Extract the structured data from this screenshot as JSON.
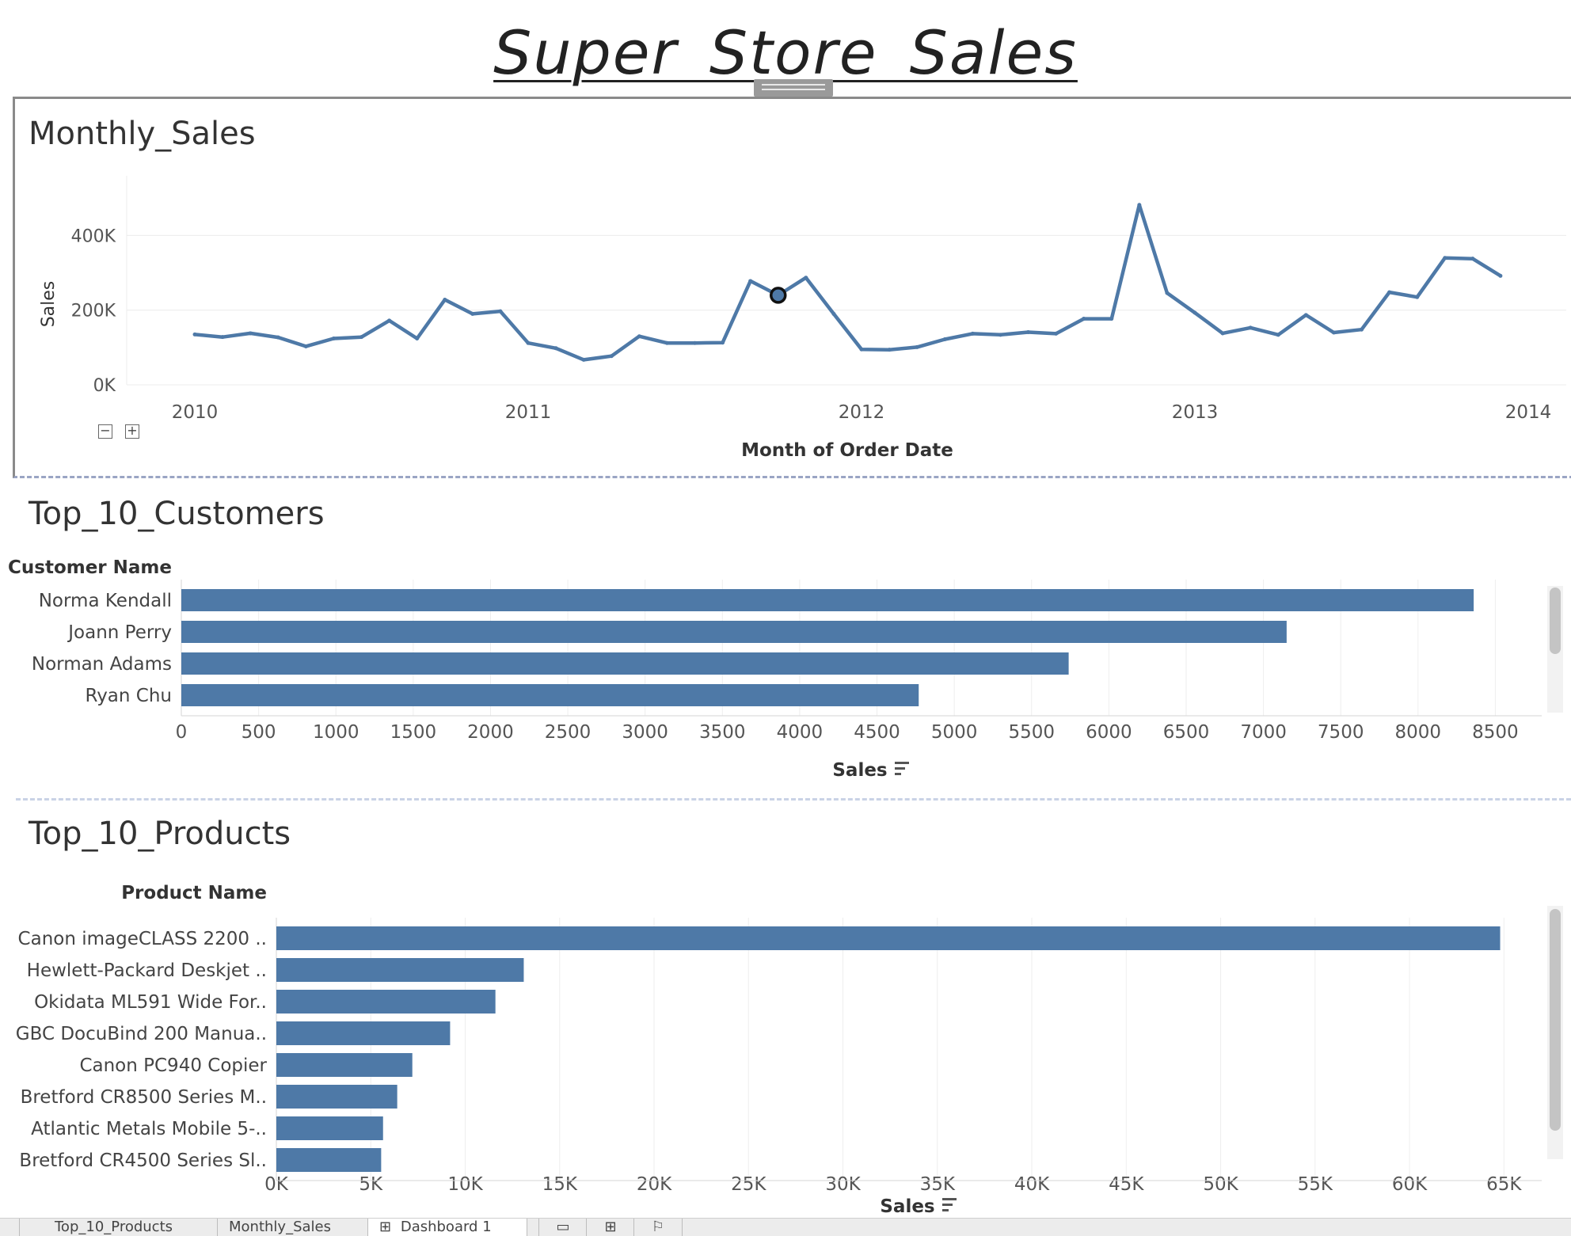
{
  "dashboard": {
    "title": "Super  Store  Sales"
  },
  "monthly_sales": {
    "title": "Monthly_Sales",
    "zoom_out": "−",
    "zoom_in": "+"
  },
  "top_customers": {
    "title": "Top_10_Customers"
  },
  "top_products": {
    "title": "Top_10_Products"
  },
  "chart_data": [
    {
      "type": "line",
      "title": "Monthly_Sales",
      "xlabel": "Month of Order Date",
      "ylabel": "Sales",
      "x_ticks": [
        "2010",
        "2011",
        "2012",
        "2013",
        "2014"
      ],
      "y_ticks": [
        "0K",
        "200K",
        "400K"
      ],
      "ylim": [
        0,
        560000
      ],
      "x": [
        "2010-01",
        "2010-02",
        "2010-03",
        "2010-04",
        "2010-05",
        "2010-06",
        "2010-07",
        "2010-08",
        "2010-09",
        "2010-10",
        "2010-11",
        "2010-12",
        "2011-01",
        "2011-02",
        "2011-03",
        "2011-04",
        "2011-05",
        "2011-06",
        "2011-07",
        "2011-08",
        "2011-09",
        "2011-10",
        "2011-11",
        "2011-12",
        "2012-01",
        "2012-02",
        "2012-03",
        "2012-04",
        "2012-05",
        "2012-06",
        "2012-07",
        "2012-08",
        "2012-09",
        "2012-10",
        "2012-11",
        "2012-12",
        "2013-01",
        "2013-02",
        "2013-03",
        "2013-04",
        "2013-05",
        "2013-06",
        "2013-07",
        "2013-08",
        "2013-09",
        "2013-10",
        "2013-11",
        "2013-12"
      ],
      "values": [
        135000,
        128000,
        138000,
        127000,
        103000,
        124000,
        128000,
        172000,
        124000,
        228000,
        190000,
        197000,
        112000,
        98000,
        67000,
        77000,
        130000,
        112000,
        112000,
        113000,
        278000,
        240000,
        287000,
        190000,
        95000,
        94000,
        101000,
        122000,
        137000,
        134000,
        141000,
        137000,
        177000,
        177000,
        482000,
        246000,
        193000,
        138000,
        153000,
        134000,
        187000,
        140000,
        148000,
        248000,
        235000,
        340000,
        338000,
        292000
      ],
      "highlighted_point": "2011-10",
      "grid": true,
      "color": "#4e79a7"
    },
    {
      "type": "bar",
      "orientation": "horizontal",
      "title": "Top_10_Customers",
      "category_header": "Customer Name",
      "xlabel": "Sales",
      "categories": [
        "Norma Kendall",
        "Joann Perry",
        "Norman Adams",
        "Ryan Chu"
      ],
      "values": [
        8360,
        7150,
        5740,
        4770
      ],
      "x_ticks": [
        "0",
        "500",
        "1000",
        "1500",
        "2000",
        "2500",
        "3000",
        "3500",
        "4000",
        "4500",
        "5000",
        "5500",
        "6000",
        "6500",
        "7000",
        "7500",
        "8000",
        "8500"
      ],
      "xlim": [
        0,
        8800
      ],
      "grid": true,
      "color": "#4e79a7"
    },
    {
      "type": "bar",
      "orientation": "horizontal",
      "title": "Top_10_Products",
      "category_header": "Product Name",
      "xlabel": "Sales",
      "categories": [
        "Canon imageCLASS 2200 ..",
        "Hewlett-Packard Deskjet ..",
        "Okidata ML591 Wide For..",
        "GBC DocuBind 200 Manua..",
        "Canon PC940 Copier",
        "Bretford CR8500 Series M..",
        "Atlantic Metals Mobile 5-..",
        "Bretford CR4500 Series Sl.."
      ],
      "values": [
        64800,
        13100,
        11600,
        9200,
        7200,
        6400,
        5650,
        5550
      ],
      "x_ticks": [
        "0K",
        "5K",
        "10K",
        "15K",
        "20K",
        "25K",
        "30K",
        "35K",
        "40K",
        "45K",
        "50K",
        "55K",
        "60K",
        "65K"
      ],
      "xlim": [
        0,
        67000
      ],
      "grid": true,
      "color": "#4e79a7"
    }
  ],
  "tabs": [
    {
      "label": "Top_10_Products"
    },
    {
      "label": "Monthly_Sales"
    },
    {
      "label": "Dashboard 1"
    }
  ],
  "tab_icons": [
    "new-worksheet-icon",
    "new-dashboard-icon",
    "new-story-icon"
  ]
}
